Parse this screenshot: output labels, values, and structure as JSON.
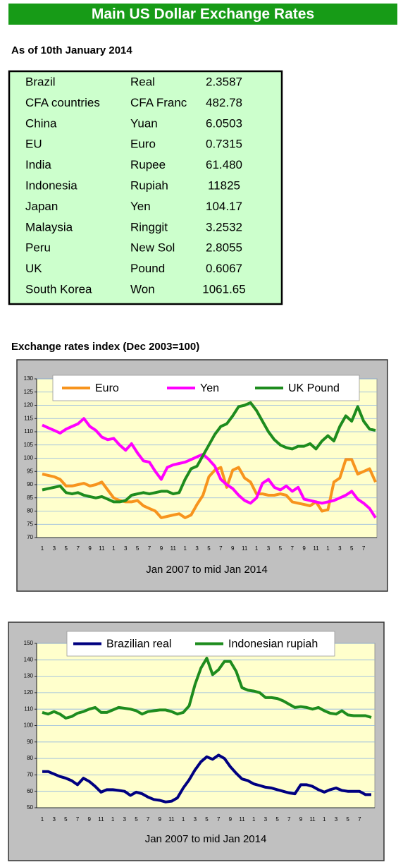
{
  "title": "Main US Dollar Exchange Rates",
  "date_label": "As of 10th January 2014",
  "table": {
    "rows": [
      [
        "Brazil",
        "Real",
        "2.3587"
      ],
      [
        "CFA countries",
        "CFA Franc",
        "482.78"
      ],
      [
        "China",
        "Yuan",
        "6.0503"
      ],
      [
        "EU",
        "Euro",
        "0.7315"
      ],
      [
        "India",
        "Rupee",
        "61.480"
      ],
      [
        "Indonesia",
        "Rupiah",
        "11825"
      ],
      [
        "Japan",
        "Yen",
        "104.17"
      ],
      [
        "Malaysia",
        "Ringgit",
        "3.2532"
      ],
      [
        "Peru",
        "New Sol",
        "2.8055"
      ],
      [
        "UK",
        "Pound",
        "0.6067"
      ],
      [
        "South Korea",
        "Won",
        "1061.65"
      ]
    ]
  },
  "chart_data": [
    {
      "type": "line",
      "title": "Exchange rates index (Dec 2003=100)",
      "xlabel": "Jan 2007 to mid Jan 2014",
      "categories": [
        "1",
        null,
        "3",
        null,
        "5",
        null,
        "7",
        null,
        "9",
        null,
        "11",
        null,
        "1",
        null,
        "3",
        null,
        "5",
        null,
        "7",
        null,
        "9",
        null,
        "11",
        null,
        "1",
        null,
        "3",
        null,
        "5",
        null,
        "7",
        null,
        "9",
        null,
        "11",
        null,
        "1",
        null,
        "3",
        null,
        "5",
        null,
        "7",
        null,
        "9",
        null,
        "11",
        null,
        "1",
        null,
        "3",
        null,
        "5",
        null,
        "7",
        null,
        null
      ],
      "ylim": [
        70,
        130
      ],
      "yticks": [
        70,
        75,
        80,
        85,
        90,
        95,
        100,
        105,
        110,
        115,
        120,
        125,
        130
      ],
      "grid": true,
      "series": [
        {
          "name": "Euro",
          "color": "#f7941d",
          "values": [
            94,
            93.5,
            93,
            92,
            89.5,
            89.5,
            90,
            90.5,
            89.5,
            90,
            91,
            88,
            85,
            84,
            83.5,
            83.5,
            84,
            82,
            81,
            80,
            77.5,
            78,
            78.5,
            79,
            77.5,
            78.5,
            82.5,
            86,
            93,
            95.5,
            96.5,
            89,
            95.5,
            96.5,
            92.5,
            91,
            86.5,
            86.5,
            86,
            86,
            86.5,
            86,
            83.5,
            83,
            82.5,
            82,
            83.5,
            80,
            80.5,
            91,
            92.5,
            99.5,
            99.5,
            94,
            95,
            96,
            91
          ]
        },
        {
          "name": "Yen",
          "color": "#ff00ff",
          "values": [
            112.5,
            111.5,
            110.5,
            109.5,
            111,
            112,
            113,
            115,
            112,
            110.5,
            108,
            107,
            107.5,
            105,
            103,
            105.5,
            102,
            99,
            98.5,
            95,
            92,
            96.5,
            97.5,
            98,
            98.5,
            99.5,
            100.5,
            101.5,
            99.5,
            97,
            92,
            90,
            88.5,
            86,
            84,
            83,
            85,
            90.5,
            92,
            89,
            88,
            89.5,
            87.5,
            89,
            84.5,
            84,
            83.5,
            83,
            83.5,
            84,
            85,
            86,
            87.5,
            84.5,
            83,
            81,
            77.5
          ]
        },
        {
          "name": "UK Pound",
          "color": "#1e8c1e",
          "values": [
            88,
            88.5,
            89,
            89.5,
            87,
            86.5,
            87,
            86,
            85.5,
            85,
            85.5,
            84.5,
            83.5,
            83.5,
            84,
            86,
            86.5,
            87,
            86.5,
            87,
            87.5,
            87.5,
            86.5,
            87,
            92,
            96,
            97,
            101,
            105,
            109,
            112,
            113,
            116,
            119.5,
            120,
            121,
            118,
            114,
            110,
            107,
            105,
            104,
            103.5,
            104.5,
            104.5,
            105.5,
            103.5,
            106.5,
            108.5,
            106.5,
            112,
            116,
            114,
            119.5,
            114,
            111,
            110.5
          ]
        }
      ]
    },
    {
      "type": "line",
      "xlabel": "Jan 2007 to mid Jan 2014",
      "categories": [
        "1",
        null,
        "3",
        null,
        "5",
        null,
        "7",
        null,
        "9",
        null,
        "11",
        null,
        "1",
        null,
        "3",
        null,
        "5",
        null,
        "7",
        null,
        "9",
        null,
        "11",
        null,
        "1",
        null,
        "3",
        null,
        "5",
        null,
        "7",
        null,
        "9",
        null,
        "11",
        null,
        "1",
        null,
        "3",
        null,
        "5",
        null,
        "7",
        null,
        "9",
        null,
        "11",
        null,
        "1",
        null,
        "3",
        null,
        "5",
        null,
        "7",
        null,
        null
      ],
      "ylim": [
        50,
        150
      ],
      "yticks": [
        50,
        60,
        70,
        80,
        90,
        100,
        110,
        120,
        130,
        140,
        150
      ],
      "grid": true,
      "series": [
        {
          "name": "Brazilian real",
          "color": "#000080",
          "values": [
            72,
            72,
            70.5,
            69,
            68,
            66.5,
            64,
            68,
            66,
            63,
            59.5,
            61,
            61,
            60.5,
            60,
            57.5,
            59.5,
            58.5,
            56.5,
            55,
            54.5,
            53.5,
            54,
            56,
            62,
            67,
            73,
            78,
            81,
            79.5,
            82,
            80,
            75,
            71,
            67.5,
            66.5,
            64.5,
            63.5,
            62.5,
            62,
            61,
            60,
            59,
            58.5,
            64,
            64,
            63,
            61,
            59.5,
            61,
            62,
            60.5,
            60,
            60,
            60,
            58,
            58
          ]
        },
        {
          "name": "Indonesian rupiah",
          "color": "#1e8c1e",
          "values": [
            108,
            107,
            108.5,
            107,
            104.5,
            105.5,
            107.5,
            108.5,
            110,
            111,
            108,
            108,
            109.5,
            111,
            110.5,
            110,
            109,
            107,
            108.5,
            109,
            109.5,
            109.5,
            108.5,
            107,
            108,
            112,
            125,
            135,
            141,
            131,
            134,
            139,
            139,
            133,
            123,
            121.5,
            121,
            120,
            117,
            117,
            116.5,
            115,
            113,
            111,
            111.5,
            111,
            110,
            111,
            109,
            107.5,
            107,
            109,
            106.5,
            106,
            106,
            106,
            105
          ]
        }
      ]
    }
  ]
}
